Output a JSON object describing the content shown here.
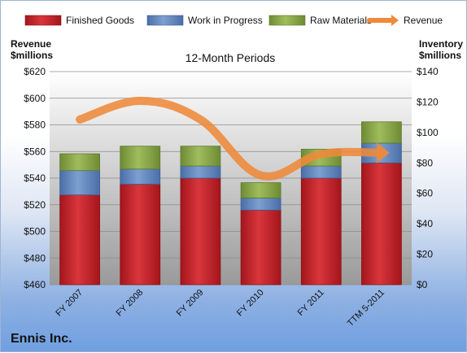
{
  "chart_data": {
    "type": "bar",
    "title": "12-Month Periods",
    "company": "Ennis Inc.",
    "left_axis_label": [
      "Revenue",
      "$millions"
    ],
    "right_axis_label": [
      "Inventory",
      "$millions"
    ],
    "categories": [
      "FY 2007",
      "FY 2008",
      "FY 2009",
      "FY 2010",
      "FY 2011",
      "TTM 5-2011"
    ],
    "series": [
      {
        "name": "Finished Goods",
        "axis": "right",
        "values": [
          59,
          66,
          70,
          49,
          70,
          80
        ],
        "color": "#c0272d"
      },
      {
        "name": "Work in Progress",
        "axis": "right",
        "values": [
          16,
          10,
          8,
          8,
          8,
          13
        ],
        "color": "#5b80b8"
      },
      {
        "name": "Raw Materials",
        "axis": "right",
        "values": [
          11,
          15,
          13,
          10,
          11,
          14
        ],
        "color": "#8aa84d"
      },
      {
        "name": "Revenue",
        "type": "line",
        "axis": "left",
        "values": [
          584,
          598,
          584,
          542,
          558,
          559
        ],
        "color": "#ee8a3a"
      }
    ],
    "left_axis": {
      "min": 460,
      "max": 620,
      "step": 20,
      "prefix": "$"
    },
    "right_axis": {
      "min": 0,
      "max": 140,
      "step": 20,
      "prefix": "$"
    },
    "grid": true,
    "legend_position": "top"
  }
}
